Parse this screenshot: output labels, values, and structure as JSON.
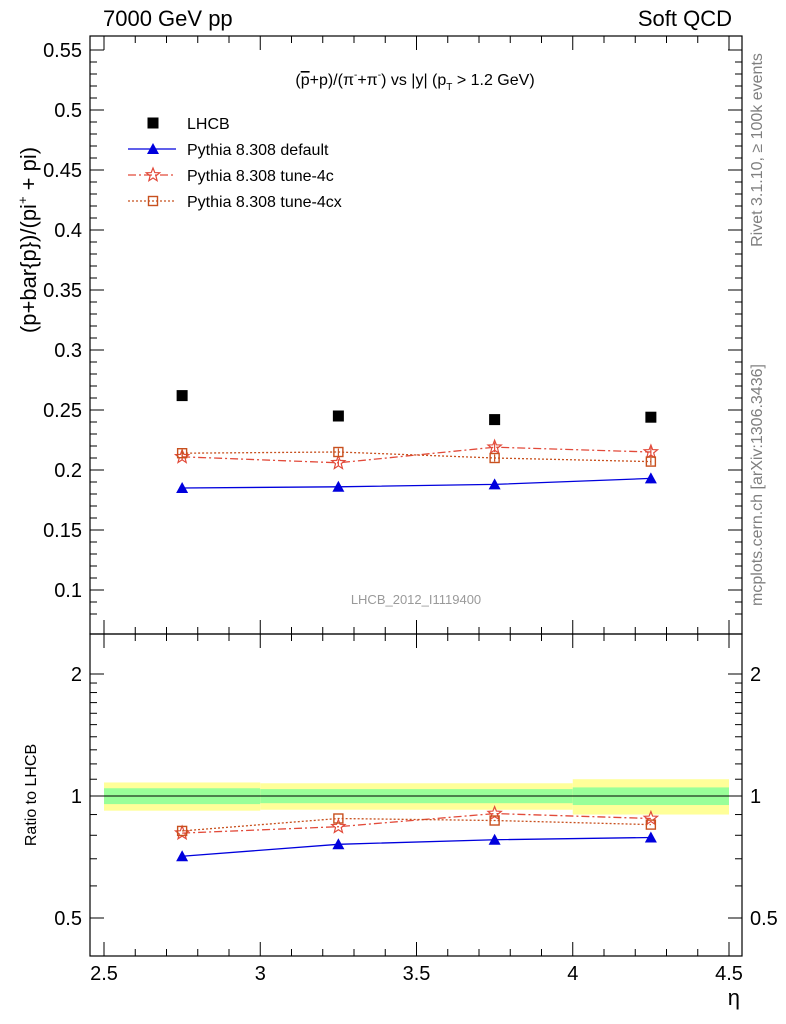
{
  "header": {
    "left": "7000 GeV pp",
    "right": "Soft QCD"
  },
  "side_labels": {
    "rivet": "Rivet 3.1.10, ≥ 100k events",
    "mcplots": "mcplots.cern.ch [arXiv:1306.3436]"
  },
  "watermark": "LHCB_2012_I1119400",
  "plot_title": {
    "pre": "(",
    "pbar": "p",
    "mid": "+p)/(π",
    "sup1": "-",
    "mid2": "+π",
    "sup2": "-",
    "mid3": ") vs |y| (p",
    "sub": "T",
    "post": " > 1.2 GeV)"
  },
  "legend": [
    {
      "label": "LHCB",
      "color": "#000000",
      "marker": "filled-square",
      "line": "none"
    },
    {
      "label": "Pythia 8.308 default",
      "color": "#0000dd",
      "marker": "filled-triangle",
      "line": "solid"
    },
    {
      "label": "Pythia 8.308 tune-4c",
      "color": "#e24a3a",
      "marker": "open-star",
      "line": "dashdot"
    },
    {
      "label": "Pythia 8.308 tune-4cx",
      "color": "#c8501e",
      "marker": "open-square",
      "line": "dotted"
    }
  ],
  "chart_data": [
    {
      "type": "scatter",
      "panel": "main",
      "title": "(p̄+p)/(π⁻+π⁻) vs |y| (pT > 1.2 GeV)",
      "ylabel": "(p+bar{p})/(pi⁺ + pi)",
      "xlim": [
        2.5,
        4.5
      ],
      "ylim": [
        0.07,
        0.56
      ],
      "yticks": [
        0.1,
        0.15,
        0.2,
        0.25,
        0.3,
        0.35,
        0.4,
        0.45,
        0.5,
        0.55
      ],
      "ytick_labels": [
        "0.1",
        "0.15",
        "0.2",
        "0.25",
        "0.3",
        "0.35",
        "0.4",
        "0.45",
        "0.5",
        "0.55"
      ],
      "x": [
        2.75,
        3.25,
        3.75,
        4.25
      ],
      "series": [
        {
          "name": "LHCB",
          "values": [
            0.262,
            0.245,
            0.242,
            0.244
          ]
        },
        {
          "name": "Pythia 8.308 default",
          "values": [
            0.185,
            0.186,
            0.188,
            0.193
          ],
          "err": [
            0.003,
            0.003,
            0.003,
            0.004
          ]
        },
        {
          "name": "Pythia 8.308 tune-4c",
          "values": [
            0.211,
            0.206,
            0.219,
            0.215
          ],
          "err": [
            0.003,
            0.003,
            0.004,
            0.004
          ]
        },
        {
          "name": "Pythia 8.308 tune-4cx",
          "values": [
            0.214,
            0.215,
            0.21,
            0.207
          ],
          "err": [
            0.003,
            0.003,
            0.003,
            0.003
          ]
        }
      ]
    },
    {
      "type": "scatter",
      "panel": "ratio",
      "ylabel": "Ratio to LHCB",
      "xlabel": "η",
      "xlim": [
        2.5,
        4.5
      ],
      "ylim": [
        0.4,
        2.25
      ],
      "log_y": true,
      "yticks": [
        0.5,
        1,
        2
      ],
      "ytick_labels": [
        "0.5",
        "1",
        "2"
      ],
      "xticks": [
        2.5,
        3,
        3.5,
        4,
        4.5
      ],
      "xtick_labels": [
        "2.5",
        "3",
        "3.5",
        "4",
        "4.5"
      ],
      "x": [
        2.75,
        3.25,
        3.75,
        4.25
      ],
      "bins": [
        [
          2.5,
          3.0
        ],
        [
          3.0,
          3.5
        ],
        [
          3.5,
          4.0
        ],
        [
          4.0,
          4.5
        ]
      ],
      "band_inner": [
        [
          0.955,
          1.045
        ],
        [
          0.96,
          1.04
        ],
        [
          0.96,
          1.04
        ],
        [
          0.95,
          1.05
        ]
      ],
      "band_outer": [
        [
          0.92,
          1.08
        ],
        [
          0.925,
          1.075
        ],
        [
          0.925,
          1.075
        ],
        [
          0.9,
          1.1
        ]
      ],
      "series": [
        {
          "name": "Pythia 8.308 default",
          "values": [
            0.71,
            0.76,
            0.78,
            0.79
          ]
        },
        {
          "name": "Pythia 8.308 tune-4c",
          "values": [
            0.81,
            0.84,
            0.905,
            0.88
          ]
        },
        {
          "name": "Pythia 8.308 tune-4cx",
          "values": [
            0.82,
            0.88,
            0.87,
            0.85
          ]
        }
      ]
    }
  ]
}
